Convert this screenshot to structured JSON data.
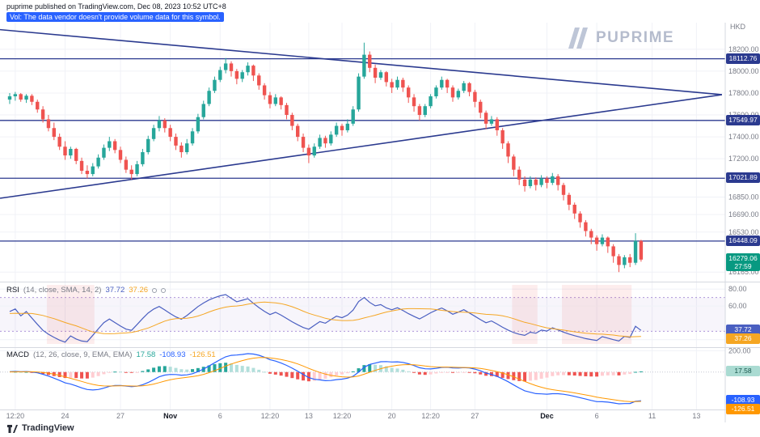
{
  "header": {
    "published": "puprime published on TradingView.com, Dec 08, 2023 10:52 UTC+8",
    "vol_notice": "Vol: The data vendor doesn't provide volume data for this symbol.",
    "currency": "HKD"
  },
  "watermark": {
    "text": "PUPRIME"
  },
  "footer": {
    "brand": "TradingView"
  },
  "colors": {
    "up": "#26a69a",
    "down": "#ef5350",
    "line_navy": "#2b3a8f",
    "grid": "#f0f2f7",
    "band": "#9575cd",
    "rsi_line": "#4a5fc1",
    "rsi_sma": "#f5a623",
    "macd_line": "#2962ff",
    "macd_signal": "#ff9800",
    "hist_up": "#26a69a",
    "hist_up2": "#b2dfdb",
    "hist_dn": "#ef5350",
    "hist_dn2": "#ffcdd2",
    "last_badge": "#089981"
  },
  "chart_data": {
    "type": "candlestick",
    "currency": "HKD",
    "price_range": [
      16100,
      18280
    ],
    "price_axis_labels": [
      18200,
      18000,
      17800,
      17600,
      17400,
      17200,
      16850,
      16690,
      16530,
      16165
    ],
    "levels": [
      18112.76,
      17549.97,
      17021.89,
      16448.09
    ],
    "last_price": "16279.06",
    "countdown": "27:59",
    "trendlines": [
      [
        -2,
        18380,
        128.6,
        17785
      ],
      [
        -1.75,
        16839,
        128.6,
        17785
      ]
    ],
    "time_labels": [
      [
        "12:20",
        1
      ],
      [
        "24",
        10
      ],
      [
        "27",
        20
      ],
      [
        "Nov",
        29
      ],
      [
        "6",
        38
      ],
      [
        "12:20",
        47
      ],
      [
        "13",
        54
      ],
      [
        "12:20",
        60
      ],
      [
        "20",
        69
      ],
      [
        "12:20",
        76
      ],
      [
        "27",
        84
      ],
      [
        "Dec",
        97
      ],
      [
        "6",
        106
      ],
      [
        "11",
        116
      ],
      [
        "13",
        124
      ]
    ],
    "rsi": {
      "title": "RSI",
      "params": "(14, close, SMA, 14, 2)",
      "value": "37.72",
      "sma": "37.26",
      "range": [
        15,
        85
      ],
      "axis_labels": [
        80,
        60,
        20
      ],
      "bands": [
        70,
        30
      ]
    },
    "macd": {
      "title": "MACD",
      "params": "(12, 26, close, 9, EMA, EMA)",
      "hist": "17.58",
      "macd": "-108.93",
      "signal": "-126.51",
      "axis_labels": [
        200,
        0
      ]
    },
    "candles": [
      [
        17740,
        17800,
        17700,
        17770
      ],
      [
        17770,
        17810,
        17730,
        17790
      ],
      [
        17790,
        17800,
        17720,
        17740
      ],
      [
        17740,
        17790,
        17710,
        17775
      ],
      [
        17775,
        17790,
        17690,
        17720
      ],
      [
        17720,
        17740,
        17620,
        17650
      ],
      [
        17650,
        17680,
        17530,
        17560
      ],
      [
        17560,
        17600,
        17450,
        17480
      ],
      [
        17480,
        17530,
        17370,
        17400
      ],
      [
        17400,
        17430,
        17280,
        17310
      ],
      [
        17310,
        17360,
        17190,
        17230
      ],
      [
        17230,
        17310,
        17200,
        17290
      ],
      [
        17290,
        17300,
        17150,
        17180
      ],
      [
        17180,
        17210,
        17060,
        17090
      ],
      [
        17090,
        17140,
        17020,
        17060
      ],
      [
        17060,
        17160,
        17040,
        17130
      ],
      [
        17130,
        17240,
        17110,
        17210
      ],
      [
        17210,
        17330,
        17190,
        17300
      ],
      [
        17300,
        17400,
        17270,
        17360
      ],
      [
        17360,
        17380,
        17250,
        17280
      ],
      [
        17280,
        17310,
        17160,
        17190
      ],
      [
        17190,
        17220,
        17070,
        17100
      ],
      [
        17100,
        17140,
        17010,
        17060
      ],
      [
        17060,
        17180,
        17040,
        17150
      ],
      [
        17150,
        17290,
        17130,
        17260
      ],
      [
        17260,
        17410,
        17240,
        17380
      ],
      [
        17380,
        17510,
        17360,
        17480
      ],
      [
        17480,
        17590,
        17450,
        17550
      ],
      [
        17550,
        17570,
        17440,
        17480
      ],
      [
        17480,
        17510,
        17360,
        17400
      ],
      [
        17400,
        17430,
        17280,
        17320
      ],
      [
        17320,
        17350,
        17210,
        17260
      ],
      [
        17260,
        17380,
        17240,
        17340
      ],
      [
        17340,
        17480,
        17320,
        17450
      ],
      [
        17450,
        17610,
        17430,
        17580
      ],
      [
        17580,
        17730,
        17560,
        17700
      ],
      [
        17700,
        17850,
        17680,
        17820
      ],
      [
        17820,
        17950,
        17800,
        17920
      ],
      [
        17920,
        18040,
        17900,
        18010
      ],
      [
        18010,
        18120,
        17980,
        18070
      ],
      [
        18070,
        18090,
        17950,
        18000
      ],
      [
        18000,
        18020,
        17880,
        17930
      ],
      [
        17930,
        18010,
        17900,
        17990
      ],
      [
        17990,
        18080,
        17960,
        18050
      ],
      [
        18050,
        18060,
        17910,
        17960
      ],
      [
        17960,
        17980,
        17830,
        17870
      ],
      [
        17870,
        17890,
        17740,
        17780
      ],
      [
        17780,
        17810,
        17660,
        17700
      ],
      [
        17700,
        17790,
        17680,
        17760
      ],
      [
        17760,
        17770,
        17650,
        17690
      ],
      [
        17690,
        17710,
        17560,
        17600
      ],
      [
        17600,
        17620,
        17460,
        17500
      ],
      [
        17500,
        17520,
        17360,
        17400
      ],
      [
        17400,
        17430,
        17260,
        17300
      ],
      [
        17300,
        17330,
        17160,
        17230
      ],
      [
        17230,
        17340,
        17210,
        17310
      ],
      [
        17310,
        17420,
        17290,
        17390
      ],
      [
        17390,
        17410,
        17300,
        17340
      ],
      [
        17340,
        17450,
        17320,
        17420
      ],
      [
        17420,
        17530,
        17400,
        17500
      ],
      [
        17500,
        17520,
        17410,
        17460
      ],
      [
        17460,
        17560,
        17440,
        17520
      ],
      [
        17520,
        17680,
        17500,
        17650
      ],
      [
        17650,
        17980,
        17630,
        17950
      ],
      [
        17950,
        18260,
        17930,
        18150
      ],
      [
        18150,
        18180,
        17990,
        18030
      ],
      [
        18030,
        18060,
        17890,
        17940
      ],
      [
        17940,
        18010,
        17920,
        17990
      ],
      [
        17990,
        18000,
        17860,
        17900
      ],
      [
        17900,
        17930,
        17800,
        17850
      ],
      [
        17850,
        17950,
        17830,
        17920
      ],
      [
        17920,
        17940,
        17810,
        17850
      ],
      [
        17850,
        17870,
        17710,
        17760
      ],
      [
        17760,
        17790,
        17630,
        17680
      ],
      [
        17680,
        17700,
        17550,
        17600
      ],
      [
        17600,
        17700,
        17580,
        17680
      ],
      [
        17680,
        17790,
        17660,
        17770
      ],
      [
        17770,
        17870,
        17750,
        17850
      ],
      [
        17850,
        17950,
        17830,
        17920
      ],
      [
        17920,
        17930,
        17800,
        17850
      ],
      [
        17850,
        17870,
        17720,
        17760
      ],
      [
        17760,
        17840,
        17740,
        17820
      ],
      [
        17820,
        17910,
        17800,
        17890
      ],
      [
        17890,
        17900,
        17770,
        17810
      ],
      [
        17810,
        17830,
        17670,
        17720
      ],
      [
        17720,
        17740,
        17570,
        17620
      ],
      [
        17620,
        17640,
        17470,
        17520
      ],
      [
        17520,
        17590,
        17500,
        17560
      ],
      [
        17560,
        17580,
        17410,
        17460
      ],
      [
        17460,
        17480,
        17290,
        17340
      ],
      [
        17340,
        17360,
        17160,
        17220
      ],
      [
        17220,
        17240,
        17040,
        17100
      ],
      [
        17100,
        17130,
        16960,
        17010
      ],
      [
        17010,
        17040,
        16900,
        16950
      ],
      [
        16950,
        17040,
        16930,
        17010
      ],
      [
        17010,
        17030,
        16910,
        16960
      ],
      [
        16960,
        17050,
        16940,
        17020
      ],
      [
        17020,
        17040,
        16930,
        16980
      ],
      [
        16980,
        17070,
        16960,
        17040
      ],
      [
        17040,
        17060,
        16910,
        16960
      ],
      [
        16960,
        16980,
        16820,
        16870
      ],
      [
        16870,
        16890,
        16730,
        16780
      ],
      [
        16780,
        16800,
        16650,
        16700
      ],
      [
        16700,
        16720,
        16570,
        16620
      ],
      [
        16620,
        16640,
        16490,
        16540
      ],
      [
        16540,
        16560,
        16420,
        16480
      ],
      [
        16480,
        16500,
        16360,
        16420
      ],
      [
        16420,
        16510,
        16400,
        16480
      ],
      [
        16480,
        16490,
        16340,
        16400
      ],
      [
        16400,
        16420,
        16250,
        16310
      ],
      [
        16310,
        16330,
        16165,
        16230
      ],
      [
        16230,
        16320,
        16200,
        16300
      ],
      [
        16300,
        16330,
        16210,
        16250
      ],
      [
        16250,
        16520,
        16230,
        16450
      ],
      [
        16450,
        16460,
        16260,
        16279
      ]
    ]
  }
}
